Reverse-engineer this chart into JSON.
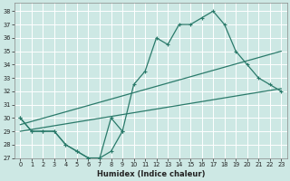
{
  "xlabel": "Humidex (Indice chaleur)",
  "bg_color": "#cde8e4",
  "grid_color": "#ffffff",
  "line_color": "#2a7a6a",
  "xlim": [
    -0.5,
    23.5
  ],
  "ylim": [
    27,
    38.6
  ],
  "yticks": [
    27,
    28,
    29,
    30,
    31,
    32,
    33,
    34,
    35,
    36,
    37,
    38
  ],
  "xticks": [
    0,
    1,
    2,
    3,
    4,
    5,
    6,
    7,
    8,
    9,
    10,
    11,
    12,
    13,
    14,
    15,
    16,
    17,
    18,
    19,
    20,
    21,
    22,
    23
  ],
  "main_x": [
    0,
    1,
    2,
    3,
    4,
    5,
    6,
    7,
    8,
    9,
    10,
    11,
    12,
    13,
    14,
    15,
    16,
    17,
    18,
    19,
    20,
    21,
    22,
    23
  ],
  "main_y": [
    30,
    29,
    29,
    29,
    28,
    27.5,
    27,
    27,
    30,
    29,
    32.5,
    33.5,
    36,
    35.5,
    37,
    37,
    37.5,
    38,
    37,
    35,
    34,
    33,
    32.5,
    32
  ],
  "low_x": [
    0,
    1,
    2,
    3,
    4,
    5,
    6,
    7,
    8,
    9
  ],
  "low_y": [
    30,
    29,
    29,
    29,
    28,
    27.5,
    27,
    27,
    27.5,
    29
  ],
  "line1_x": [
    0,
    23
  ],
  "line1_y": [
    29.5,
    35.0
  ],
  "line2_x": [
    0,
    23
  ],
  "line2_y": [
    29.0,
    32.2
  ]
}
